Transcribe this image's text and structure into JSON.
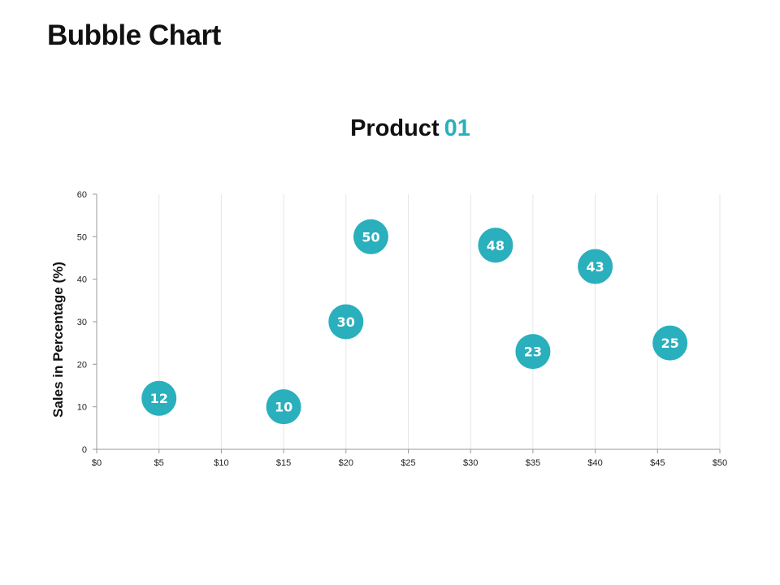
{
  "page": {
    "title": "Bubble Chart"
  },
  "chart_data": {
    "type": "scatter",
    "title_main": "Product",
    "title_accent": "01",
    "xlabel": "",
    "ylabel": "Sales in Percentage (%)",
    "xlim": [
      0,
      50
    ],
    "ylim": [
      0,
      60
    ],
    "x_ticks": [
      0,
      5,
      10,
      15,
      20,
      25,
      30,
      35,
      40,
      45,
      50
    ],
    "x_tick_labels": [
      "$0",
      "$5",
      "$10",
      "$15",
      "$20",
      "$25",
      "$30",
      "$35",
      "$40",
      "$45",
      "$50"
    ],
    "y_ticks": [
      0,
      10,
      20,
      30,
      40,
      50,
      60
    ],
    "y_tick_labels": [
      "0",
      "10",
      "20",
      "30",
      "40",
      "50",
      "60"
    ],
    "grid": "vertical",
    "bubble_color": "#2aafbd",
    "points": [
      {
        "x": 5,
        "y": 12,
        "label": "12"
      },
      {
        "x": 15,
        "y": 10,
        "label": "10"
      },
      {
        "x": 20,
        "y": 30,
        "label": "30"
      },
      {
        "x": 22,
        "y": 50,
        "label": "50"
      },
      {
        "x": 32,
        "y": 48,
        "label": "48"
      },
      {
        "x": 35,
        "y": 23,
        "label": "23"
      },
      {
        "x": 40,
        "y": 43,
        "label": "43"
      },
      {
        "x": 46,
        "y": 25,
        "label": "25"
      }
    ]
  }
}
